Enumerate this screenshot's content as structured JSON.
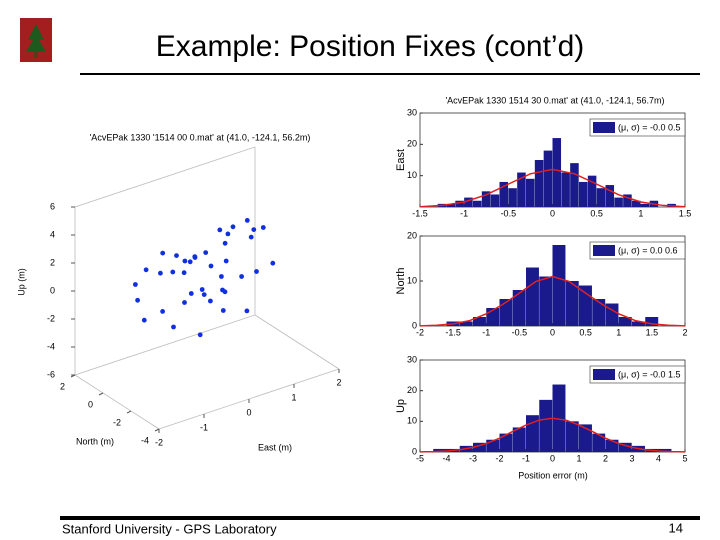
{
  "slide": {
    "title": "Example: Position Fixes (cont’d)",
    "footer": "Stanford University - GPS Laboratory",
    "page_number": "14"
  },
  "chart_data": [
    {
      "type": "scatter3d",
      "title": "'AcvEPak 1330 '1514 00 0.mat' at (41.0, -124.1, 56.2m)",
      "xlabel": "East (m)",
      "ylabel": "North (m)",
      "zlabel": "Up (m)",
      "color": "#1030e0",
      "xlim": [
        -2,
        2
      ],
      "ylim": [
        -4,
        2
      ],
      "zlim": [
        -6,
        6
      ],
      "xticks": [
        -2,
        -1,
        0,
        1,
        2
      ],
      "yticks": [
        -4,
        -2,
        0,
        2
      ],
      "zticks": [
        -6,
        -4,
        -2,
        0,
        2,
        4,
        6
      ],
      "x": [
        0.2,
        -0.5,
        0.8,
        1.2,
        -0.9,
        0.1,
        0.5,
        -0.2,
        1.5,
        -1.2,
        0.3,
        0.9,
        -0.6,
        0.0,
        1.1,
        -0.3,
        0.6,
        1.3,
        -0.8,
        0.4,
        0.7,
        -0.1,
        1.0,
        -1.0,
        0.2,
        0.5,
        1.4,
        -0.4,
        0.8,
        0.0,
        -0.7,
        1.2,
        0.3,
        -0.2,
        0.9,
        0.6,
        1.6,
        -1.3,
        0.1,
        0.4
      ],
      "y": [
        0.5,
        -1.0,
        0.2,
        1.0,
        -1.5,
        1.5,
        -0.5,
        0.8,
        -0.2,
        0.1,
        -1.2,
        0.6,
        0.4,
        -0.8,
        -1.0,
        1.2,
        1.8,
        0.3,
        -0.4,
        0.0,
        -1.6,
        -0.2,
        1.3,
        0.9,
        -0.6,
        0.7,
        -1.2,
        -1.8,
        -0.9,
        0.2,
        1.1,
        -0.3,
        1.6,
        -1.3,
        0.4,
        -0.1,
        0.8,
        -0.7,
        0.9,
        -1.0
      ],
      "z": [
        1.0,
        -0.5,
        0.3,
        1.8,
        -1.5,
        0.6,
        -1.0,
        0.2,
        2.2,
        -0.3,
        -1.8,
        1.2,
        0.8,
        -0.6,
        0.0,
        1.4,
        -0.2,
        2.6,
        -1.2,
        0.5,
        -2.0,
        -0.8,
        1.6,
        0.1,
        -1.4,
        0.9,
        0.4,
        -2.4,
        -0.1,
        1.1,
        0.7,
        1.9,
        -0.9,
        0.3,
        2.0,
        -0.4,
        1.3,
        -1.1,
        0.6,
        -0.7
      ]
    },
    {
      "type": "histogram",
      "title": "'AcvEPak 1330 1514 30 0.mat' at (41.0, -124.1, 56.7m)",
      "ylabel": "East",
      "xlim": [
        -1.5,
        1.5
      ],
      "ylim": [
        0,
        30
      ],
      "xticks": [
        -1.5,
        -1,
        -0.5,
        0,
        0.5,
        1,
        1.5
      ],
      "yticks": [
        10,
        20,
        30
      ],
      "bins": [
        -1.5,
        -1.4,
        -1.3,
        -1.2,
        -1.1,
        -1.0,
        -0.9,
        -0.8,
        -0.7,
        -0.6,
        -0.5,
        -0.4,
        -0.3,
        -0.2,
        -0.1,
        0,
        0.1,
        0.2,
        0.3,
        0.4,
        0.5,
        0.6,
        0.7,
        0.8,
        0.9,
        1.0,
        1.1,
        1.2,
        1.3,
        1.4,
        1.5
      ],
      "series": [
        {
          "name": "(μ, σ) = -0.0  0.5",
          "color": "#1a1a8c",
          "values": [
            0,
            0,
            1,
            1,
            2,
            3,
            2,
            5,
            4,
            8,
            6,
            11,
            9,
            15,
            18,
            22,
            11,
            14,
            8,
            10,
            6,
            7,
            3,
            4,
            2,
            1,
            2,
            0,
            1,
            0
          ]
        }
      ],
      "fit": {
        "color": "#e02020",
        "x": [
          -1.5,
          -1.25,
          -1,
          -0.75,
          -0.5,
          -0.25,
          0,
          0.25,
          0.5,
          0.75,
          1,
          1.25,
          1.5
        ],
        "values": [
          0.1,
          0.5,
          1.6,
          3.9,
          7.3,
          10.6,
          12,
          10.6,
          7.3,
          3.9,
          1.6,
          0.5,
          0.1
        ]
      }
    },
    {
      "type": "histogram",
      "ylabel": "North",
      "xlim": [
        -2,
        2
      ],
      "ylim": [
        0,
        20
      ],
      "xticks": [
        -2,
        -1.5,
        -1,
        -0.5,
        0,
        0.5,
        1,
        1.5,
        2
      ],
      "yticks": [
        0,
        10,
        20
      ],
      "bins": [
        -2,
        -1.8,
        -1.6,
        -1.4,
        -1.2,
        -1.0,
        -0.8,
        -0.6,
        -0.4,
        -0.2,
        0,
        0.2,
        0.4,
        0.6,
        0.8,
        1.0,
        1.2,
        1.4,
        1.6,
        1.8,
        2
      ],
      "series": [
        {
          "name": "(μ, σ) = 0.0  0.6",
          "color": "#1a1a8c",
          "values": [
            0,
            0,
            1,
            1,
            2,
            4,
            6,
            8,
            13,
            11,
            18,
            10,
            9,
            6,
            5,
            2,
            1,
            2,
            0,
            0
          ]
        }
      ],
      "fit": {
        "color": "#e02020",
        "x": [
          -2,
          -1.75,
          -1.5,
          -1.25,
          -1,
          -0.75,
          -0.5,
          -0.25,
          0,
          0.25,
          0.5,
          0.75,
          1,
          1.25,
          1.5,
          1.75,
          2
        ],
        "values": [
          0.04,
          0.16,
          0.48,
          1.2,
          2.7,
          4.8,
          7.3,
          9.9,
          11,
          9.9,
          7.3,
          4.8,
          2.7,
          1.2,
          0.48,
          0.16,
          0.04
        ]
      }
    },
    {
      "type": "histogram",
      "ylabel": "Up",
      "xlabel": "Position error (m)",
      "xlim": [
        -5,
        5
      ],
      "ylim": [
        0,
        30
      ],
      "xticks": [
        -5,
        -4,
        -3,
        -2,
        -1,
        0,
        1,
        2,
        3,
        4,
        5
      ],
      "yticks": [
        0,
        10,
        20,
        30
      ],
      "bins": [
        -5,
        -4.5,
        -4,
        -3.5,
        -3,
        -2.5,
        -2,
        -1.5,
        -1,
        -0.5,
        0,
        0.5,
        1,
        1.5,
        2,
        2.5,
        3,
        3.5,
        4,
        4.5,
        5
      ],
      "series": [
        {
          "name": "(μ, σ) = -0.0  1.5",
          "color": "#1a1a8c",
          "values": [
            0,
            1,
            1,
            2,
            3,
            4,
            6,
            8,
            12,
            17,
            22,
            10,
            9,
            6,
            4,
            3,
            2,
            1,
            1,
            0
          ]
        }
      ],
      "fit": {
        "color": "#e02020",
        "x": [
          -5,
          -4.5,
          -4,
          -3.5,
          -3,
          -2.5,
          -2,
          -1.5,
          -1,
          -0.5,
          0,
          0.5,
          1,
          1.5,
          2,
          2.5,
          3,
          3.5,
          4,
          4.5,
          5
        ],
        "values": [
          0.04,
          0.12,
          0.31,
          0.72,
          1.5,
          2.75,
          4.5,
          6.7,
          8.8,
          10.4,
          11,
          10.4,
          8.8,
          6.7,
          4.5,
          2.75,
          1.5,
          0.72,
          0.31,
          0.12,
          0.04
        ]
      }
    }
  ]
}
